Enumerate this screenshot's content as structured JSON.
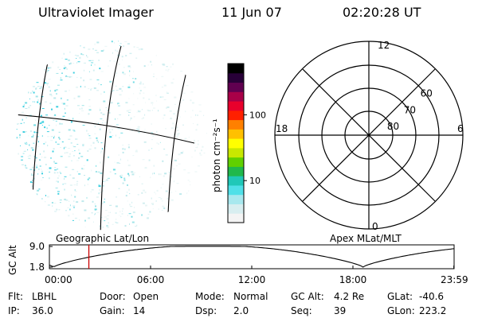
{
  "header": {
    "instrument": "Ultraviolet Imager",
    "date": "11 Jun 07",
    "time": "02:20:28 UT"
  },
  "colorbar": {
    "unit_label": "photon cm⁻²s⁻¹",
    "ticks": [
      {
        "label": "100",
        "value": 100
      },
      {
        "label": "10",
        "value": 10
      }
    ],
    "colors": [
      "#f4f4f4",
      "#d8eef0",
      "#a8e8ee",
      "#50e0e8",
      "#20c8b8",
      "#20b84c",
      "#60d000",
      "#c8e800",
      "#ffff00",
      "#ffc000",
      "#ff8000",
      "#ff2000",
      "#e8002c",
      "#a80048",
      "#600050",
      "#280038",
      "#000000"
    ]
  },
  "polar_plot": {
    "mlt_labels": [
      {
        "label": "12",
        "angle_deg": 0
      },
      {
        "label": "6",
        "angle_deg": 90
      },
      {
        "label": "0",
        "angle_deg": 180
      },
      {
        "label": "18",
        "angle_deg": 270
      }
    ],
    "lat_labels": [
      {
        "label": "60",
        "lat": 60
      },
      {
        "label": "70",
        "lat": 70
      },
      {
        "label": "80",
        "lat": 80
      }
    ]
  },
  "timeline": {
    "left_label": "Geographic Lat/Lon",
    "right_label": "Apex MLat/MLT",
    "axis_title": "GC Alt",
    "y_ticks": [
      {
        "label": "9.0",
        "value": 9.0
      },
      {
        "label": "1.8",
        "value": 1.8
      }
    ],
    "x_ticks": [
      {
        "label": "00:00",
        "hours": 0
      },
      {
        "label": "06:00",
        "hours": 6
      },
      {
        "label": "12:00",
        "hours": 12
      },
      {
        "label": "18:00",
        "hours": 18
      },
      {
        "label": "23:59",
        "hours": 23.983
      }
    ],
    "current_time_hours": 2.34,
    "marker_color": "#cc0000",
    "orbit_period_hours": 18.35,
    "perigee_time_hours": 18.6
  },
  "status": {
    "row1": [
      {
        "label": "Flt:",
        "value": "LBHL"
      },
      {
        "label": "Door:",
        "value": "Open"
      },
      {
        "label": "Mode:",
        "value": "Normal"
      },
      {
        "label": "GC Alt:",
        "value": "4.2 Re"
      },
      {
        "label": "GLat:",
        "value": "-40.6"
      }
    ],
    "row2": [
      {
        "label": "IP:",
        "value": "36.0"
      },
      {
        "label": "Gain:",
        "value": "14"
      },
      {
        "label": "Dsp:",
        "value": "2.0"
      },
      {
        "label": "Seq:",
        "value": "39"
      },
      {
        "label": "GLon:",
        "value": "223.2"
      }
    ]
  }
}
